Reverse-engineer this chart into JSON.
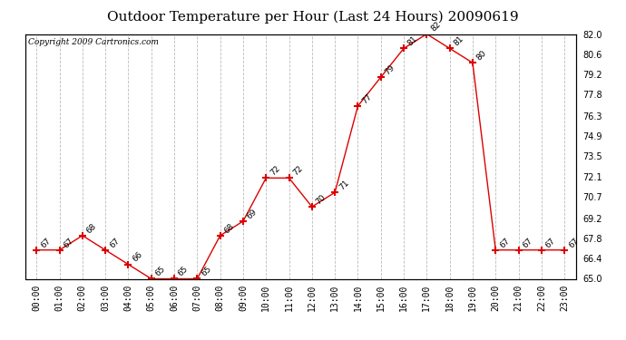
{
  "title": "Outdoor Temperature per Hour (Last 24 Hours) 20090619",
  "copyright_text": "Copyright 2009 Cartronics.com",
  "hours": [
    0,
    1,
    2,
    3,
    4,
    5,
    6,
    7,
    8,
    9,
    10,
    11,
    12,
    13,
    14,
    15,
    16,
    17,
    18,
    19,
    20,
    21,
    22,
    23
  ],
  "hour_labels": [
    "00:00",
    "01:00",
    "02:00",
    "03:00",
    "04:00",
    "05:00",
    "06:00",
    "07:00",
    "08:00",
    "09:00",
    "10:00",
    "11:00",
    "12:00",
    "13:00",
    "14:00",
    "15:00",
    "16:00",
    "17:00",
    "18:00",
    "19:00",
    "20:00",
    "21:00",
    "22:00",
    "23:00"
  ],
  "temperatures": [
    67,
    67,
    68,
    67,
    66,
    65,
    65,
    65,
    68,
    69,
    72,
    72,
    70,
    71,
    77,
    79,
    81,
    82,
    81,
    80,
    67,
    67,
    67,
    67
  ],
  "line_color": "#dd0000",
  "marker": "+",
  "marker_size": 6,
  "marker_color": "#dd0000",
  "ylim": [
    65.0,
    82.0
  ],
  "yticks": [
    65.0,
    66.4,
    67.8,
    69.2,
    70.7,
    72.1,
    73.5,
    74.9,
    76.3,
    77.8,
    79.2,
    80.6,
    82.0
  ],
  "ytick_labels": [
    "65.0",
    "66.4",
    "67.8",
    "69.2",
    "70.7",
    "72.1",
    "73.5",
    "74.9",
    "76.3",
    "77.8",
    "79.2",
    "80.6",
    "82.0"
  ],
  "grid_color": "#bbbbbb",
  "grid_linestyle": "--",
  "bg_color": "#ffffff",
  "font_color": "#000000",
  "title_fontsize": 11,
  "label_fontsize": 7,
  "annotation_fontsize": 6.5,
  "copyright_fontsize": 6.5
}
